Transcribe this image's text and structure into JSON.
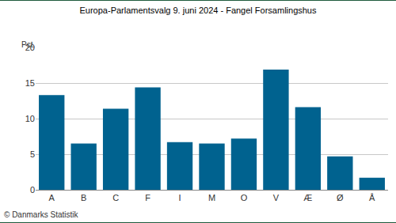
{
  "chart_data": {
    "type": "bar",
    "title": "Europa-Parlamentsvalg 9. juni 2024 - Fangel Forsamlingshus",
    "y_label": "Pct.",
    "footer": "© Danmarks Statistik",
    "categories": [
      "A",
      "B",
      "C",
      "F",
      "I",
      "M",
      "O",
      "V",
      "Æ",
      "Ø",
      "Å"
    ],
    "values": [
      13.3,
      6.5,
      11.4,
      14.4,
      6.7,
      6.5,
      7.2,
      16.9,
      11.6,
      4.7,
      1.7
    ],
    "color": "#00628f",
    "ylim": [
      0,
      20
    ],
    "yticks": [
      0,
      5,
      10,
      15,
      20
    ],
    "grid": true
  }
}
